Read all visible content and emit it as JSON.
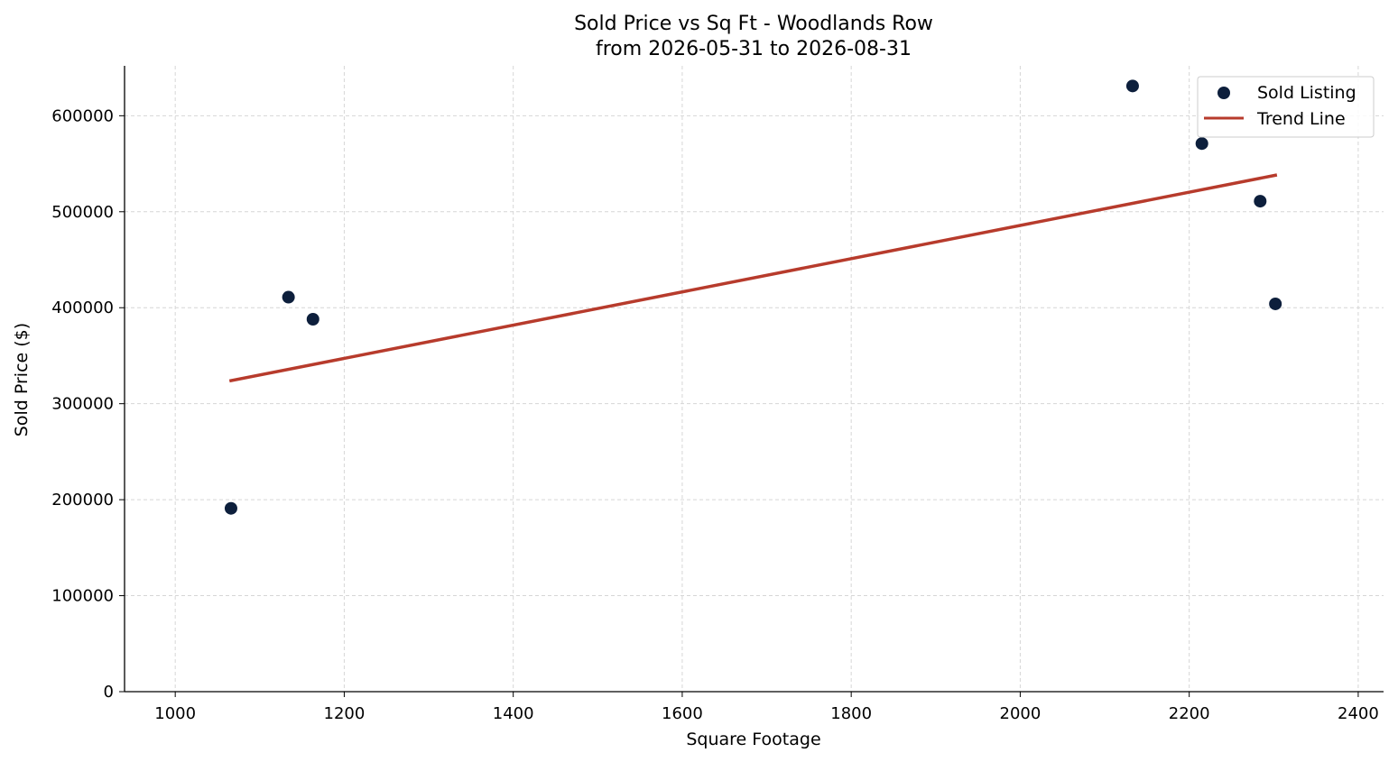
{
  "chart_data": {
    "type": "scatter",
    "title": "Sold Price vs Sq Ft - Woodlands Row",
    "subtitle": "from 2026-05-31 to 2026-08-31",
    "xlabel": "Square Footage",
    "ylabel": "Sold Price ($)",
    "xlim": [
      940,
      2430
    ],
    "ylim": [
      0,
      652000
    ],
    "xticks": [
      1000,
      1200,
      1400,
      1600,
      1800,
      2000,
      2200,
      2400
    ],
    "yticks": [
      0,
      100000,
      200000,
      300000,
      400000,
      500000,
      600000
    ],
    "grid": true,
    "legend_position": "top-right",
    "series": [
      {
        "name": "Sold Listing",
        "kind": "scatter",
        "color": "#0d1f3c",
        "points": [
          {
            "x": 1066,
            "y": 191000
          },
          {
            "x": 1134,
            "y": 411000
          },
          {
            "x": 1163,
            "y": 388000
          },
          {
            "x": 2133,
            "y": 631000
          },
          {
            "x": 2215,
            "y": 571000
          },
          {
            "x": 2284,
            "y": 511000
          },
          {
            "x": 2302,
            "y": 404000
          }
        ]
      },
      {
        "name": "Trend Line",
        "kind": "line",
        "color": "#b73b2c",
        "points": [
          {
            "x": 1066,
            "y": 324000
          },
          {
            "x": 2302,
            "y": 538000
          }
        ]
      }
    ]
  }
}
